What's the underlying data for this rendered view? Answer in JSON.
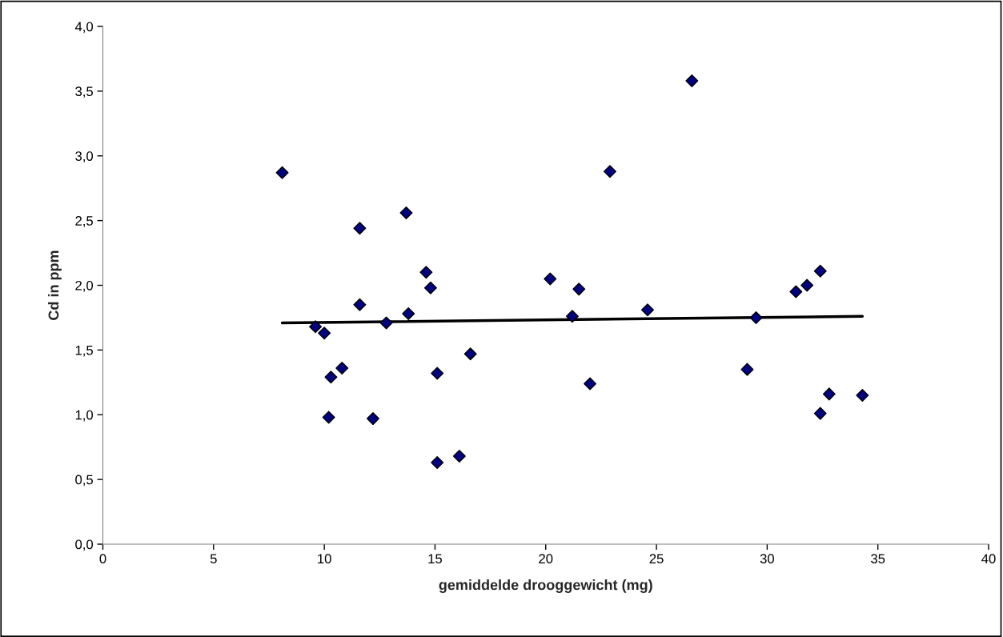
{
  "chart_data": {
    "type": "scatter",
    "xlabel": "gemiddelde drooggewicht (mg)",
    "ylabel": "Cd in ppm",
    "xlim": [
      0,
      40
    ],
    "xticks": [
      0,
      5,
      10,
      15,
      20,
      25,
      30,
      35,
      40
    ],
    "ylim": [
      0,
      4.0
    ],
    "yticks": [
      {
        "value": 0,
        "label": "0,0"
      },
      {
        "value": 0.5,
        "label": "0,5"
      },
      {
        "value": 1.0,
        "label": "1,0"
      },
      {
        "value": 1.5,
        "label": "1,5"
      },
      {
        "value": 2.0,
        "label": "2,0"
      },
      {
        "value": 2.5,
        "label": "2,5"
      },
      {
        "value": 3.0,
        "label": "3,0"
      },
      {
        "value": 3.5,
        "label": "3,5"
      },
      {
        "value": 4.0,
        "label": "4,0"
      }
    ],
    "grid": false,
    "series": [
      {
        "marker": "diamond",
        "color": "#000080",
        "x": [
          8.1,
          9.6,
          10.0,
          10.3,
          10.8,
          10.2,
          11.6,
          11.6,
          12.2,
          12.8,
          13.7,
          13.8,
          14.6,
          14.8,
          15.1,
          15.1,
          16.1,
          16.6,
          20.2,
          21.2,
          21.5,
          22.0,
          22.9,
          24.6,
          26.6,
          29.1,
          29.5,
          31.3,
          31.8,
          32.4,
          32.4,
          32.8,
          34.3
        ],
        "values": [
          2.87,
          1.68,
          1.63,
          1.29,
          1.36,
          0.98,
          2.44,
          1.85,
          0.97,
          1.71,
          2.56,
          1.78,
          2.1,
          1.98,
          1.32,
          0.63,
          0.68,
          1.47,
          2.05,
          1.76,
          1.97,
          1.24,
          2.88,
          1.81,
          3.58,
          1.35,
          1.75,
          1.95,
          2.0,
          2.11,
          1.01,
          1.16,
          1.15
        ]
      },
      {
        "type": "line",
        "color": "#000000",
        "x": [
          8.1,
          34.3
        ],
        "values": [
          1.71,
          1.76
        ]
      }
    ]
  }
}
